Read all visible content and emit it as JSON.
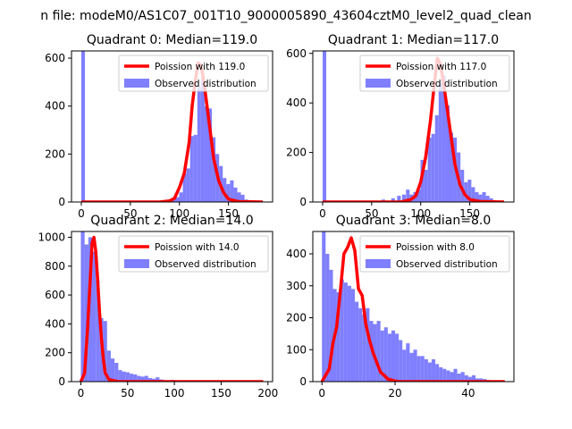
{
  "figure": {
    "title": "n file: modeM0/AS1C07_001T10_9000005890_43604cztM0_level2_quad_clean"
  },
  "chart_data": [
    {
      "type": "bar+line",
      "title": "Quadrant 0: Median=119.0",
      "xlabel": "",
      "ylabel": "",
      "xlim": [
        -10,
        195
      ],
      "ylim": [
        0,
        630
      ],
      "xticks": [
        0,
        50,
        100,
        150
      ],
      "yticks": [
        0,
        200,
        400,
        600
      ],
      "legend_position": "upper right",
      "legend": [
        "Poission with 119.0",
        "Observed distribution"
      ],
      "histogram": {
        "name": "Observed distribution",
        "bin_width": 3.7,
        "color": "#7f7fff",
        "bins": [
          {
            "x": 0,
            "count": 630
          },
          {
            "x": 85,
            "count": 5
          },
          {
            "x": 88.7,
            "count": 8
          },
          {
            "x": 92.4,
            "count": 15
          },
          {
            "x": 96.1,
            "count": 20
          },
          {
            "x": 99.8,
            "count": 40
          },
          {
            "x": 103.5,
            "count": 120
          },
          {
            "x": 107.2,
            "count": 140
          },
          {
            "x": 110.9,
            "count": 275
          },
          {
            "x": 114.6,
            "count": 280
          },
          {
            "x": 118.3,
            "count": 480
          },
          {
            "x": 122,
            "count": 520
          },
          {
            "x": 125.7,
            "count": 400
          },
          {
            "x": 129.4,
            "count": 390
          },
          {
            "x": 133.1,
            "count": 270
          },
          {
            "x": 136.8,
            "count": 200
          },
          {
            "x": 140.5,
            "count": 150
          },
          {
            "x": 144.2,
            "count": 100
          },
          {
            "x": 147.9,
            "count": 75
          },
          {
            "x": 151.6,
            "count": 90
          },
          {
            "x": 155.3,
            "count": 60
          },
          {
            "x": 159,
            "count": 40
          },
          {
            "x": 162.7,
            "count": 30
          },
          {
            "x": 166.4,
            "count": 10
          },
          {
            "x": 170.1,
            "count": 5
          }
        ]
      },
      "poisson": {
        "name": "Poission with 119.0",
        "color": "#ff0000",
        "x": [
          0,
          80,
          90,
          95,
          100,
          105,
          110,
          113,
          116,
          119,
          122,
          125,
          130,
          135,
          140,
          145,
          150,
          160,
          185
        ],
        "y": [
          0,
          0,
          5,
          15,
          60,
          120,
          250,
          400,
          500,
          580,
          570,
          500,
          340,
          180,
          90,
          40,
          12,
          2,
          0
        ]
      }
    },
    {
      "type": "bar+line",
      "title": "Quadrant 1: Median=117.0",
      "xlabel": "",
      "ylabel": "",
      "xlim": [
        -10,
        195
      ],
      "ylim": [
        0,
        610
      ],
      "xticks": [
        0,
        50,
        100,
        150
      ],
      "yticks": [
        0,
        200,
        400,
        600
      ],
      "legend_position": "upper right",
      "legend": [
        "Poission with 117.0",
        "Observed distribution"
      ],
      "histogram": {
        "name": "Observed distribution",
        "bin_width": 3.7,
        "color": "#7f7fff",
        "bins": [
          {
            "x": 0,
            "count": 610
          },
          {
            "x": 45,
            "count": 5
          },
          {
            "x": 60,
            "count": 10
          },
          {
            "x": 70,
            "count": 15
          },
          {
            "x": 76,
            "count": 25
          },
          {
            "x": 81,
            "count": 30
          },
          {
            "x": 85,
            "count": 50
          },
          {
            "x": 88.7,
            "count": 30
          },
          {
            "x": 92.4,
            "count": 40
          },
          {
            "x": 96.1,
            "count": 50
          },
          {
            "x": 99.8,
            "count": 170
          },
          {
            "x": 103.5,
            "count": 130
          },
          {
            "x": 107.2,
            "count": 260
          },
          {
            "x": 110.9,
            "count": 275
          },
          {
            "x": 114.6,
            "count": 350
          },
          {
            "x": 118.3,
            "count": 480
          },
          {
            "x": 122,
            "count": 510
          },
          {
            "x": 125.7,
            "count": 390
          },
          {
            "x": 129.4,
            "count": 280
          },
          {
            "x": 133.1,
            "count": 260
          },
          {
            "x": 136.8,
            "count": 200
          },
          {
            "x": 140.5,
            "count": 130
          },
          {
            "x": 144.2,
            "count": 80
          },
          {
            "x": 147.9,
            "count": 90
          },
          {
            "x": 151.6,
            "count": 60
          },
          {
            "x": 155.3,
            "count": 40
          },
          {
            "x": 159,
            "count": 30
          },
          {
            "x": 162.7,
            "count": 40
          },
          {
            "x": 166.4,
            "count": 25
          },
          {
            "x": 170.1,
            "count": 15
          }
        ]
      },
      "poisson": {
        "name": "Poission with 117.0",
        "color": "#ff0000",
        "x": [
          0,
          80,
          90,
          95,
          100,
          105,
          110,
          114,
          117,
          120,
          124,
          130,
          135,
          140,
          145,
          150,
          160,
          185
        ],
        "y": [
          0,
          0,
          10,
          25,
          80,
          180,
          330,
          480,
          580,
          560,
          460,
          290,
          150,
          70,
          30,
          10,
          2,
          0
        ]
      }
    },
    {
      "type": "bar+line",
      "title": "Quadrant 2: Median=14.0",
      "xlabel": "",
      "ylabel": "",
      "xlim": [
        -10,
        205
      ],
      "ylim": [
        0,
        1040
      ],
      "xticks": [
        0,
        50,
        100,
        150,
        200
      ],
      "yticks": [
        0,
        200,
        400,
        600,
        800,
        1000
      ],
      "legend_position": "upper right",
      "legend": [
        "Poission with 14.0",
        "Observed distribution"
      ],
      "histogram": {
        "name": "Observed distribution",
        "bin_width": 4,
        "color": "#7f7fff",
        "bins": [
          {
            "x": 0,
            "count": 1040
          },
          {
            "x": 4,
            "count": 950
          },
          {
            "x": 8,
            "count": 1000
          },
          {
            "x": 12,
            "count": 900
          },
          {
            "x": 16,
            "count": 700
          },
          {
            "x": 20,
            "count": 440
          },
          {
            "x": 24,
            "count": 420
          },
          {
            "x": 28,
            "count": 215
          },
          {
            "x": 32,
            "count": 160
          },
          {
            "x": 36,
            "count": 130
          },
          {
            "x": 40,
            "count": 80
          },
          {
            "x": 44,
            "count": 70
          },
          {
            "x": 48,
            "count": 65
          },
          {
            "x": 52,
            "count": 55
          },
          {
            "x": 56,
            "count": 50
          },
          {
            "x": 60,
            "count": 40
          },
          {
            "x": 64,
            "count": 35
          },
          {
            "x": 68,
            "count": 40
          },
          {
            "x": 72,
            "count": 25
          },
          {
            "x": 76,
            "count": 20
          },
          {
            "x": 80,
            "count": 30
          },
          {
            "x": 84,
            "count": 15
          },
          {
            "x": 88,
            "count": 10
          },
          {
            "x": 92,
            "count": 8
          },
          {
            "x": 96,
            "count": 12
          },
          {
            "x": 100,
            "count": 5
          },
          {
            "x": 108,
            "count": 5
          },
          {
            "x": 116,
            "count": 4
          },
          {
            "x": 124,
            "count": 3
          }
        ]
      },
      "poisson": {
        "name": "Poission with 14.0",
        "color": "#ff0000",
        "x": [
          0,
          4,
          7,
          10,
          12,
          14,
          16,
          18,
          20,
          22,
          24,
          26,
          30,
          40,
          195
        ],
        "y": [
          0,
          60,
          350,
          700,
          960,
          1000,
          900,
          700,
          480,
          300,
          160,
          60,
          15,
          0,
          0
        ]
      }
    },
    {
      "type": "bar+line",
      "title": "Quadrant 3: Median=8.0",
      "xlabel": "",
      "ylabel": "",
      "xlim": [
        -2.5,
        52.5
      ],
      "ylim": [
        0,
        470
      ],
      "xticks": [
        0,
        20,
        40
      ],
      "yticks": [
        0,
        100,
        200,
        300,
        400
      ],
      "legend_position": "upper right",
      "legend": [
        "Poission with 8.0",
        "Observed distribution"
      ],
      "histogram": {
        "name": "Observed distribution",
        "bin_width": 1,
        "color": "#7f7fff",
        "bins": [
          {
            "x": 0,
            "count": 470
          },
          {
            "x": 1,
            "count": 400
          },
          {
            "x": 2,
            "count": 350
          },
          {
            "x": 3,
            "count": 290
          },
          {
            "x": 4,
            "count": 280
          },
          {
            "x": 5,
            "count": 320
          },
          {
            "x": 6,
            "count": 310
          },
          {
            "x": 7,
            "count": 300
          },
          {
            "x": 8,
            "count": 290
          },
          {
            "x": 9,
            "count": 250
          },
          {
            "x": 10,
            "count": 230
          },
          {
            "x": 11,
            "count": 210
          },
          {
            "x": 12,
            "count": 230
          },
          {
            "x": 13,
            "count": 190
          },
          {
            "x": 14,
            "count": 180
          },
          {
            "x": 15,
            "count": 190
          },
          {
            "x": 16,
            "count": 160
          },
          {
            "x": 17,
            "count": 170
          },
          {
            "x": 18,
            "count": 150
          },
          {
            "x": 19,
            "count": 160
          },
          {
            "x": 20,
            "count": 150
          },
          {
            "x": 21,
            "count": 130
          },
          {
            "x": 22,
            "count": 100
          },
          {
            "x": 23,
            "count": 120
          },
          {
            "x": 24,
            "count": 90
          },
          {
            "x": 25,
            "count": 100
          },
          {
            "x": 26,
            "count": 80
          },
          {
            "x": 27,
            "count": 80
          },
          {
            "x": 28,
            "count": 70
          },
          {
            "x": 29,
            "count": 60
          },
          {
            "x": 30,
            "count": 70
          },
          {
            "x": 31,
            "count": 55
          },
          {
            "x": 32,
            "count": 45
          },
          {
            "x": 33,
            "count": 40
          },
          {
            "x": 34,
            "count": 35
          },
          {
            "x": 35,
            "count": 30
          },
          {
            "x": 36,
            "count": 40
          },
          {
            "x": 37,
            "count": 25
          },
          {
            "x": 38,
            "count": 30
          },
          {
            "x": 39,
            "count": 20
          },
          {
            "x": 40,
            "count": 15
          },
          {
            "x": 41,
            "count": 20
          },
          {
            "x": 42,
            "count": 10
          },
          {
            "x": 43,
            "count": 10
          },
          {
            "x": 44,
            "count": 8
          },
          {
            "x": 45,
            "count": 5
          },
          {
            "x": 46,
            "count": 4
          },
          {
            "x": 47,
            "count": 3
          },
          {
            "x": 48,
            "count": 2
          },
          {
            "x": 49,
            "count": 2
          }
        ]
      },
      "poisson": {
        "name": "Poission with 8.0",
        "color": "#ff0000",
        "x": [
          0,
          1,
          2,
          3,
          4,
          5,
          6,
          7,
          8,
          9,
          10,
          11,
          12,
          13,
          14,
          15,
          16,
          17,
          18,
          19,
          20,
          21,
          50
        ],
        "y": [
          0,
          20,
          40,
          120,
          170,
          280,
          400,
          420,
          450,
          410,
          290,
          270,
          180,
          130,
          90,
          60,
          30,
          20,
          8,
          5,
          2,
          0,
          0
        ]
      }
    }
  ]
}
